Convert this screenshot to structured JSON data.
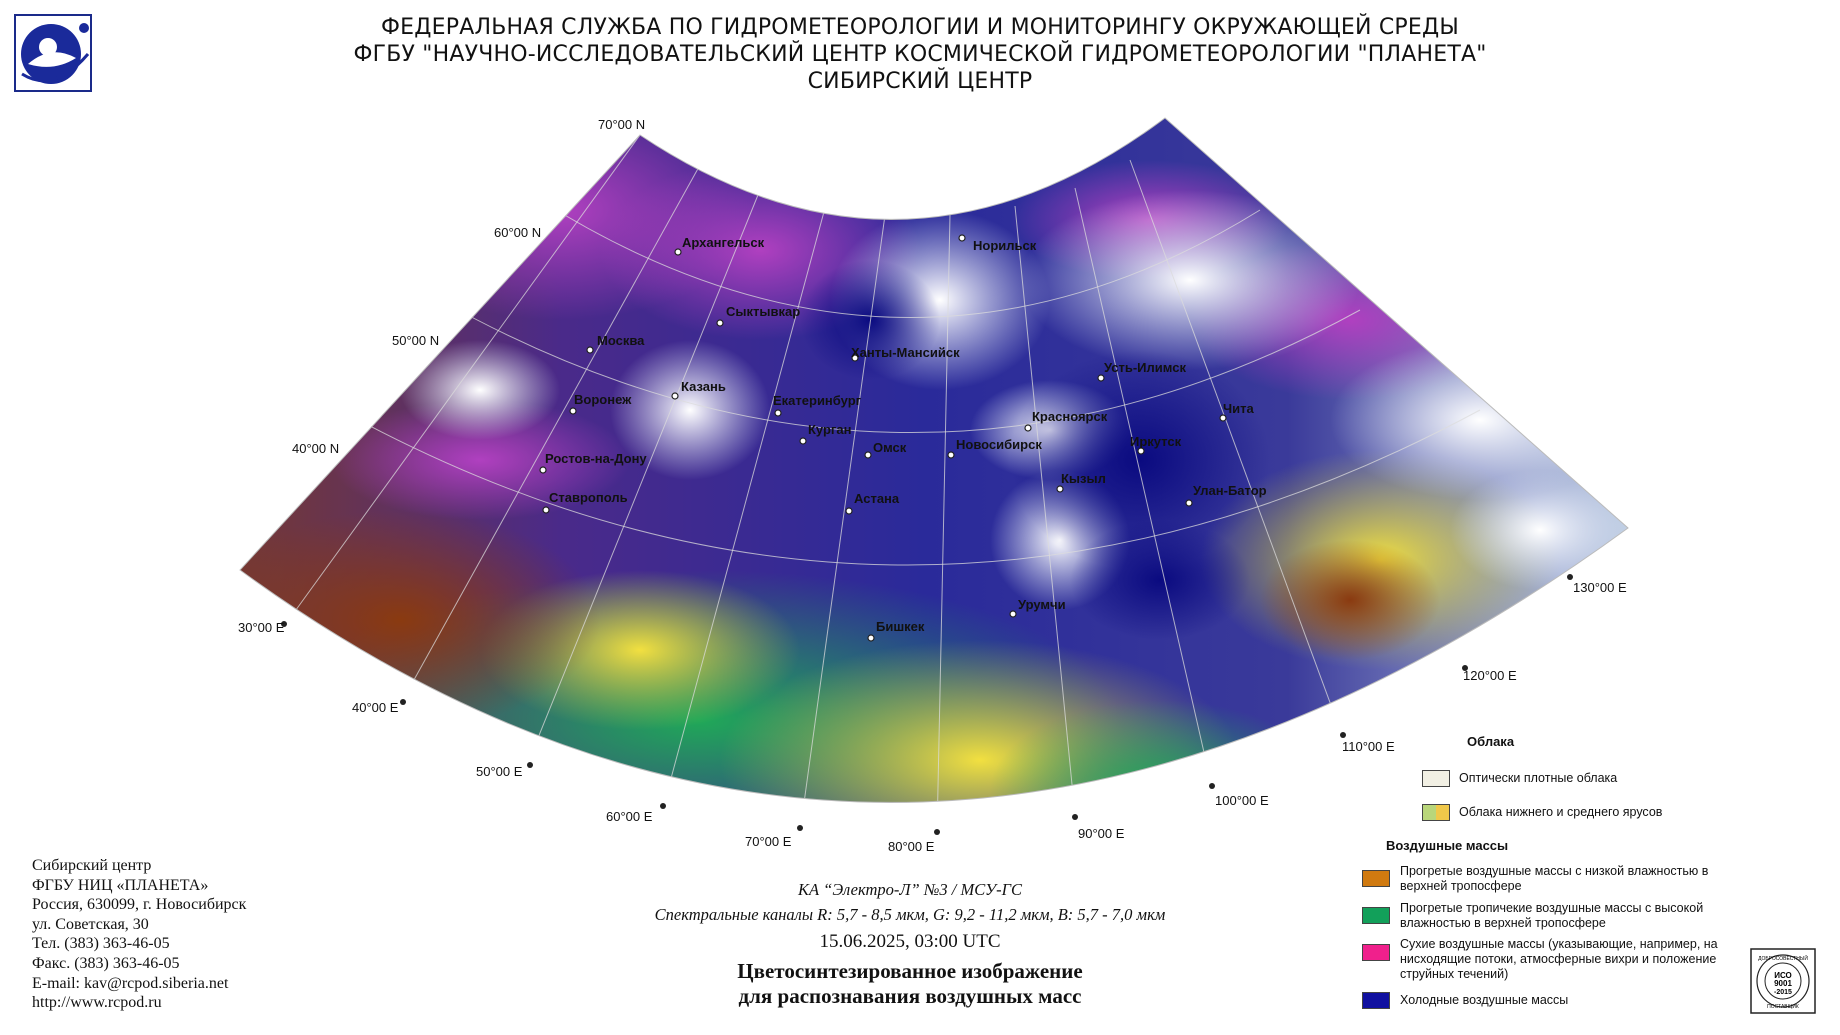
{
  "header": {
    "line1": "ФЕДЕРАЛЬНАЯ СЛУЖБА ПО ГИДРОМЕТЕОРОЛОГИИ И МОНИТОРИНГУ ОКРУЖАЮЩЕЙ СРЕДЫ",
    "line2": "ФГБУ \"НАУЧНО-ИССЛЕДОВАТЕЛЬСКИЙ ЦЕНТР КОСМИЧЕСКОЙ ГИДРОМЕТЕОРОЛОГИИ \"ПЛАНЕТА\"",
    "line3": "СИБИРСКИЙ ЦЕНТР"
  },
  "map": {
    "latitudes": [
      "70°00 N",
      "60°00 N",
      "50°00 N",
      "40°00 N"
    ],
    "longitudes": [
      "30°00 E",
      "40°00 E",
      "50°00 E",
      "60°00 E",
      "70°00 E",
      "80°00 E",
      "90°00 E",
      "100°00 E",
      "110°00 E",
      "120°00 E",
      "130°00 E"
    ],
    "cities": [
      "Архангельск",
      "Норильск",
      "Сыктывкар",
      "Москва",
      "Ханты-Мансийск",
      "Усть-Илимск",
      "Казань",
      "Воронеж",
      "Екатеринбург",
      "Красноярск",
      "Чита",
      "Курган",
      "Омск",
      "Новосибирск",
      "Иркутск",
      "Ростов-на-Дону",
      "Кызыл",
      "Улан-Батор",
      "Ставрополь",
      "Астана",
      "Урумчи",
      "Бишкек"
    ]
  },
  "contact": {
    "l1": "Сибирский центр",
    "l2": "ФГБУ НИЦ «ПЛАНЕТА»",
    "l3": "Россия, 630099, г. Новосибирск",
    "l4": "ул. Советская, 30",
    "l5": "Тел. (383) 363-46-05",
    "l6": "Факс. (383) 363-46-05",
    "l7": "E-mail: kav@rcpod.siberia.net",
    "l8": "http://www.rcpod.ru"
  },
  "caption": {
    "satellite": "КА “Электро-Л” №3 / МСУ-ГС",
    "channels": "Спектральные каналы R: 5,7 - 8,5 мкм, G: 9,2 - 11,2 мкм, B: 5,7 - 7,0 мкм",
    "datetime": "15.06.2025, 03:00 UTC",
    "title1": "Цветосинтезированное изображение",
    "title2": "для распознавания воздушных масс"
  },
  "legend": {
    "clouds_title": "Облака",
    "clouds": [
      {
        "label": "Оптически плотные облака",
        "color": "#f2f0e4"
      },
      {
        "label": "Облака нижнего и среднего ярусов",
        "color1": "#b9d67a",
        "color2": "#f0c84a"
      }
    ],
    "air_title": "Воздушные массы",
    "air": [
      {
        "label": "Прогретые воздушные массы с низкой влажностью в верхней тропосфере",
        "color": "#d07a10"
      },
      {
        "label": "Прогретые тропичекие воздушные массы с высокой влажностью в верхней тропосфере",
        "color": "#12a05a"
      },
      {
        "label": "Сухие воздушные массы (указывающие, например, на нисходящие потоки, атмосферные вихри и положение струйных течений)",
        "color": "#f0208c"
      },
      {
        "label": "Холодные воздушные массы",
        "color": "#1010a0"
      }
    ]
  },
  "iso": {
    "line1": "ИСО",
    "line2": "9001",
    "line3": "-2015",
    "arc_top": "ДОБРОСОВЕСТНЫЙ",
    "arc_bottom": "ПОСТАВЩИК"
  }
}
